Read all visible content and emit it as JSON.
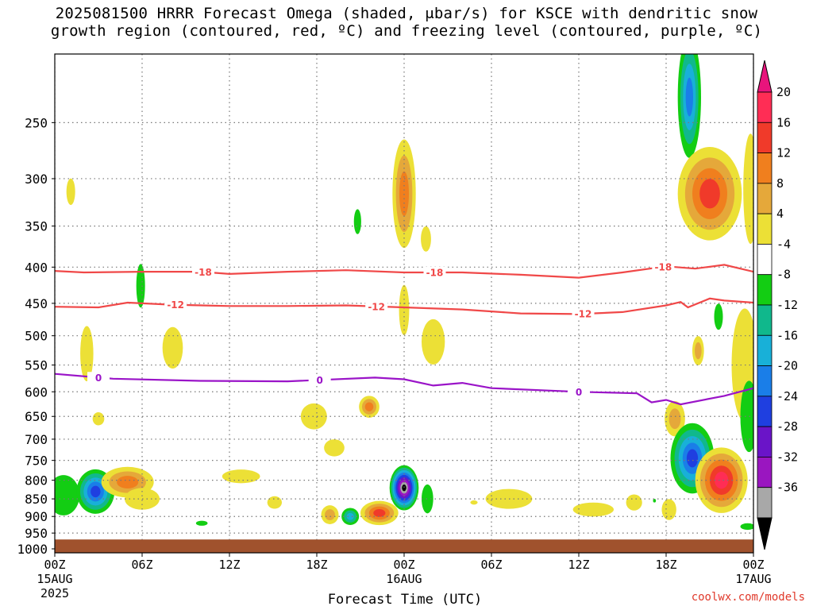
{
  "title": {
    "line1": "2025081500 HRRR Forecast Omega (shaded, μbar/s) for KSCE with dendritic snow",
    "line2": "growth region (contoured, red, ºC) and freezing level (contoured, purple, ºC)"
  },
  "credit": "coolwx.com/models",
  "chart_data": {
    "type": "heatmap",
    "xlabel": "Forecast Time (UTC)",
    "x_ticks": [
      {
        "hour": 0,
        "label": "00Z",
        "sub": "15AUG",
        "sub2": "2025"
      },
      {
        "hour": 6,
        "label": "06Z"
      },
      {
        "hour": 12,
        "label": "12Z"
      },
      {
        "hour": 18,
        "label": "18Z"
      },
      {
        "hour": 24,
        "label": "00Z",
        "sub": "16AUG"
      },
      {
        "hour": 30,
        "label": "06Z"
      },
      {
        "hour": 36,
        "label": "12Z"
      },
      {
        "hour": 42,
        "label": "18Z"
      },
      {
        "hour": 48,
        "label": "00Z",
        "sub": "17AUG"
      }
    ],
    "xlim": [
      0,
      48
    ],
    "y_ticks": [
      250,
      300,
      350,
      400,
      450,
      500,
      550,
      600,
      650,
      700,
      750,
      800,
      850,
      900,
      950,
      1000
    ],
    "ylim": [
      200,
      1013
    ],
    "y_scale": "log-pressure",
    "surface_pressure": 970,
    "colorbar": {
      "labels": [
        "20",
        "16",
        "12",
        "8",
        "4",
        "-4",
        "-8",
        "-12",
        "-16",
        "-20",
        "-24",
        "-28",
        "-32",
        "-36"
      ],
      "colors": [
        "#ff2d55",
        "#f03a2a",
        "#f07f1e",
        "#e5a83a",
        "#ece036",
        "#ffffff",
        "#13cd13",
        "#10b88c",
        "#18b0d8",
        "#1a7ee8",
        "#1f3fe0",
        "#6a14c8",
        "#9a16c0",
        "#a8a8a8",
        "#000000"
      ],
      "top_arrow_color": "#e8147c",
      "bottom_arrow_color": "#000000"
    },
    "contours": [
      {
        "level": "-18",
        "color": "#f04848",
        "points": [
          [
            0,
            405
          ],
          [
            2,
            407
          ],
          [
            6,
            406
          ],
          [
            10,
            406
          ],
          [
            12,
            409
          ],
          [
            16,
            406
          ],
          [
            20,
            404
          ],
          [
            24,
            407
          ],
          [
            28,
            407
          ],
          [
            32,
            410
          ],
          [
            36,
            414
          ],
          [
            39,
            407
          ],
          [
            42,
            399
          ],
          [
            44,
            402
          ],
          [
            46,
            397
          ],
          [
            48,
            406
          ]
        ],
        "labels": [
          [
            10.2,
            "-18"
          ],
          [
            26.1,
            "-18"
          ],
          [
            41.8,
            "-18"
          ]
        ]
      },
      {
        "level": "-12",
        "color": "#f04848",
        "points": [
          [
            0,
            455
          ],
          [
            3,
            456
          ],
          [
            5,
            449
          ],
          [
            8,
            452
          ],
          [
            12,
            454
          ],
          [
            16,
            454
          ],
          [
            20,
            453
          ],
          [
            24,
            456
          ],
          [
            28,
            459
          ],
          [
            32,
            465
          ],
          [
            36,
            466
          ],
          [
            39,
            463
          ],
          [
            42,
            453
          ],
          [
            43,
            448
          ],
          [
            43.5,
            456
          ],
          [
            45,
            443
          ],
          [
            46,
            446
          ],
          [
            48,
            449
          ]
        ],
        "labels": [
          [
            8.3,
            "-12"
          ],
          [
            22.1,
            "-12"
          ],
          [
            36.3,
            "-12"
          ]
        ]
      },
      {
        "level": "0",
        "color": "#9a14c8",
        "points": [
          [
            0,
            566
          ],
          [
            4,
            575
          ],
          [
            10,
            579
          ],
          [
            16,
            580
          ],
          [
            22,
            573
          ],
          [
            24,
            576
          ],
          [
            26,
            588
          ],
          [
            28,
            583
          ],
          [
            30,
            593
          ],
          [
            36,
            600
          ],
          [
            40,
            603
          ],
          [
            41,
            621
          ],
          [
            42,
            616
          ],
          [
            43,
            625
          ],
          [
            46,
            608
          ],
          [
            48,
            593
          ]
        ],
        "labels": [
          [
            3,
            "0"
          ],
          [
            18.2,
            "0"
          ],
          [
            36,
            "0"
          ]
        ]
      }
    ],
    "blobs": [
      {
        "x": 1.1,
        "p": 313,
        "w": 0.3,
        "h": 27,
        "levels": [
          4
        ]
      },
      {
        "x": 2.2,
        "p": 530,
        "w": 0.45,
        "h": 95,
        "levels": [
          4
        ]
      },
      {
        "x": 3.0,
        "p": 655,
        "w": 0.4,
        "h": 28,
        "levels": [
          4
        ]
      },
      {
        "x": 0.6,
        "p": 840,
        "w": 1.1,
        "h": 110,
        "levels": [
          -4
        ]
      },
      {
        "x": 2.8,
        "p": 830,
        "w": 1.3,
        "h": 120,
        "levels": [
          -4,
          -8,
          -12,
          -16,
          -20
        ]
      },
      {
        "x": 5.0,
        "p": 805,
        "w": 1.8,
        "h": 80,
        "levels": [
          4,
          8,
          12
        ]
      },
      {
        "x": 6.0,
        "p": 850,
        "w": 1.2,
        "h": 60,
        "levels": [
          4
        ]
      },
      {
        "x": 5.9,
        "p": 425,
        "w": 0.3,
        "h": 60,
        "levels": [
          -4
        ]
      },
      {
        "x": 8.1,
        "p": 520,
        "w": 0.7,
        "h": 70,
        "levels": [
          4
        ]
      },
      {
        "x": 10.1,
        "p": 920,
        "w": 0.4,
        "h": 15,
        "levels": [
          -4
        ]
      },
      {
        "x": 12.8,
        "p": 790,
        "w": 1.3,
        "h": 35,
        "levels": [
          4
        ]
      },
      {
        "x": 15.1,
        "p": 860,
        "w": 0.5,
        "h": 35,
        "levels": [
          4
        ]
      },
      {
        "x": 17.8,
        "p": 650,
        "w": 0.9,
        "h": 55,
        "levels": [
          4
        ]
      },
      {
        "x": 19.2,
        "p": 720,
        "w": 0.7,
        "h": 40,
        "levels": [
          4
        ]
      },
      {
        "x": 18.9,
        "p": 895,
        "w": 0.6,
        "h": 55,
        "levels": [
          4,
          8
        ]
      },
      {
        "x": 20.3,
        "p": 900,
        "w": 0.6,
        "h": 50,
        "levels": [
          -4,
          -8,
          -12
        ]
      },
      {
        "x": 21.6,
        "p": 630,
        "w": 0.7,
        "h": 45,
        "levels": [
          4,
          8,
          12
        ]
      },
      {
        "x": 22.3,
        "p": 890,
        "w": 1.3,
        "h": 70,
        "levels": [
          4,
          8,
          12,
          16
        ]
      },
      {
        "x": 20.8,
        "p": 345,
        "w": 0.25,
        "h": 28,
        "levels": [
          -4
        ]
      },
      {
        "x": 24.0,
        "p": 315,
        "w": 0.8,
        "h": 110,
        "levels": [
          4,
          8,
          12
        ]
      },
      {
        "x": 24.0,
        "p": 460,
        "w": 0.35,
        "h": 75,
        "levels": [
          4
        ]
      },
      {
        "x": 24.0,
        "p": 820,
        "w": 1.0,
        "h": 120,
        "levels": [
          -4,
          -8,
          -12,
          -16,
          -20,
          -24,
          -28,
          -32,
          -36
        ]
      },
      {
        "x": 25.6,
        "p": 850,
        "w": 0.4,
        "h": 80,
        "levels": [
          -4
        ]
      },
      {
        "x": 25.5,
        "p": 365,
        "w": 0.35,
        "h": 30,
        "levels": [
          4
        ]
      },
      {
        "x": 26.0,
        "p": 510,
        "w": 0.8,
        "h": 75,
        "levels": [
          4
        ]
      },
      {
        "x": 28.8,
        "p": 860,
        "w": 0.25,
        "h": 12,
        "levels": [
          4
        ]
      },
      {
        "x": 31.2,
        "p": 850,
        "w": 1.6,
        "h": 55,
        "levels": [
          4
        ]
      },
      {
        "x": 37.0,
        "p": 880,
        "w": 1.4,
        "h": 40,
        "levels": [
          4
        ]
      },
      {
        "x": 39.8,
        "p": 860,
        "w": 0.55,
        "h": 45,
        "levels": [
          4
        ]
      },
      {
        "x": 41.2,
        "p": 855,
        "w": 0.1,
        "h": 10,
        "levels": [
          -4
        ]
      },
      {
        "x": 42.2,
        "p": 880,
        "w": 0.5,
        "h": 60,
        "levels": [
          4
        ]
      },
      {
        "x": 42.6,
        "p": 655,
        "w": 0.7,
        "h": 75,
        "levels": [
          4,
          8
        ]
      },
      {
        "x": 43.8,
        "p": 745,
        "w": 1.5,
        "h": 170,
        "levels": [
          -4,
          -8,
          -12,
          -16,
          -20
        ]
      },
      {
        "x": 43.6,
        "p": 230,
        "w": 0.8,
        "h": 90,
        "levels": [
          -4,
          -8,
          -12,
          -16
        ]
      },
      {
        "x": 45.0,
        "p": 315,
        "w": 2.2,
        "h": 95,
        "levels": [
          4,
          8,
          12,
          16
        ]
      },
      {
        "x": 44.2,
        "p": 525,
        "w": 0.4,
        "h": 50,
        "levels": [
          4,
          8
        ]
      },
      {
        "x": 45.6,
        "p": 470,
        "w": 0.3,
        "h": 40,
        "levels": [
          -4
        ]
      },
      {
        "x": 45.8,
        "p": 800,
        "w": 1.8,
        "h": 170,
        "levels": [
          4,
          8,
          12,
          16,
          20
        ]
      },
      {
        "x": 47.4,
        "p": 550,
        "w": 0.9,
        "h": 200,
        "levels": [
          4
        ]
      },
      {
        "x": 47.8,
        "p": 310,
        "w": 0.5,
        "h": 110,
        "levels": [
          4
        ]
      },
      {
        "x": 47.7,
        "p": 650,
        "w": 0.6,
        "h": 150,
        "levels": [
          -4
        ]
      },
      {
        "x": 47.6,
        "p": 930,
        "w": 0.5,
        "h": 20,
        "levels": [
          -4
        ]
      }
    ]
  }
}
